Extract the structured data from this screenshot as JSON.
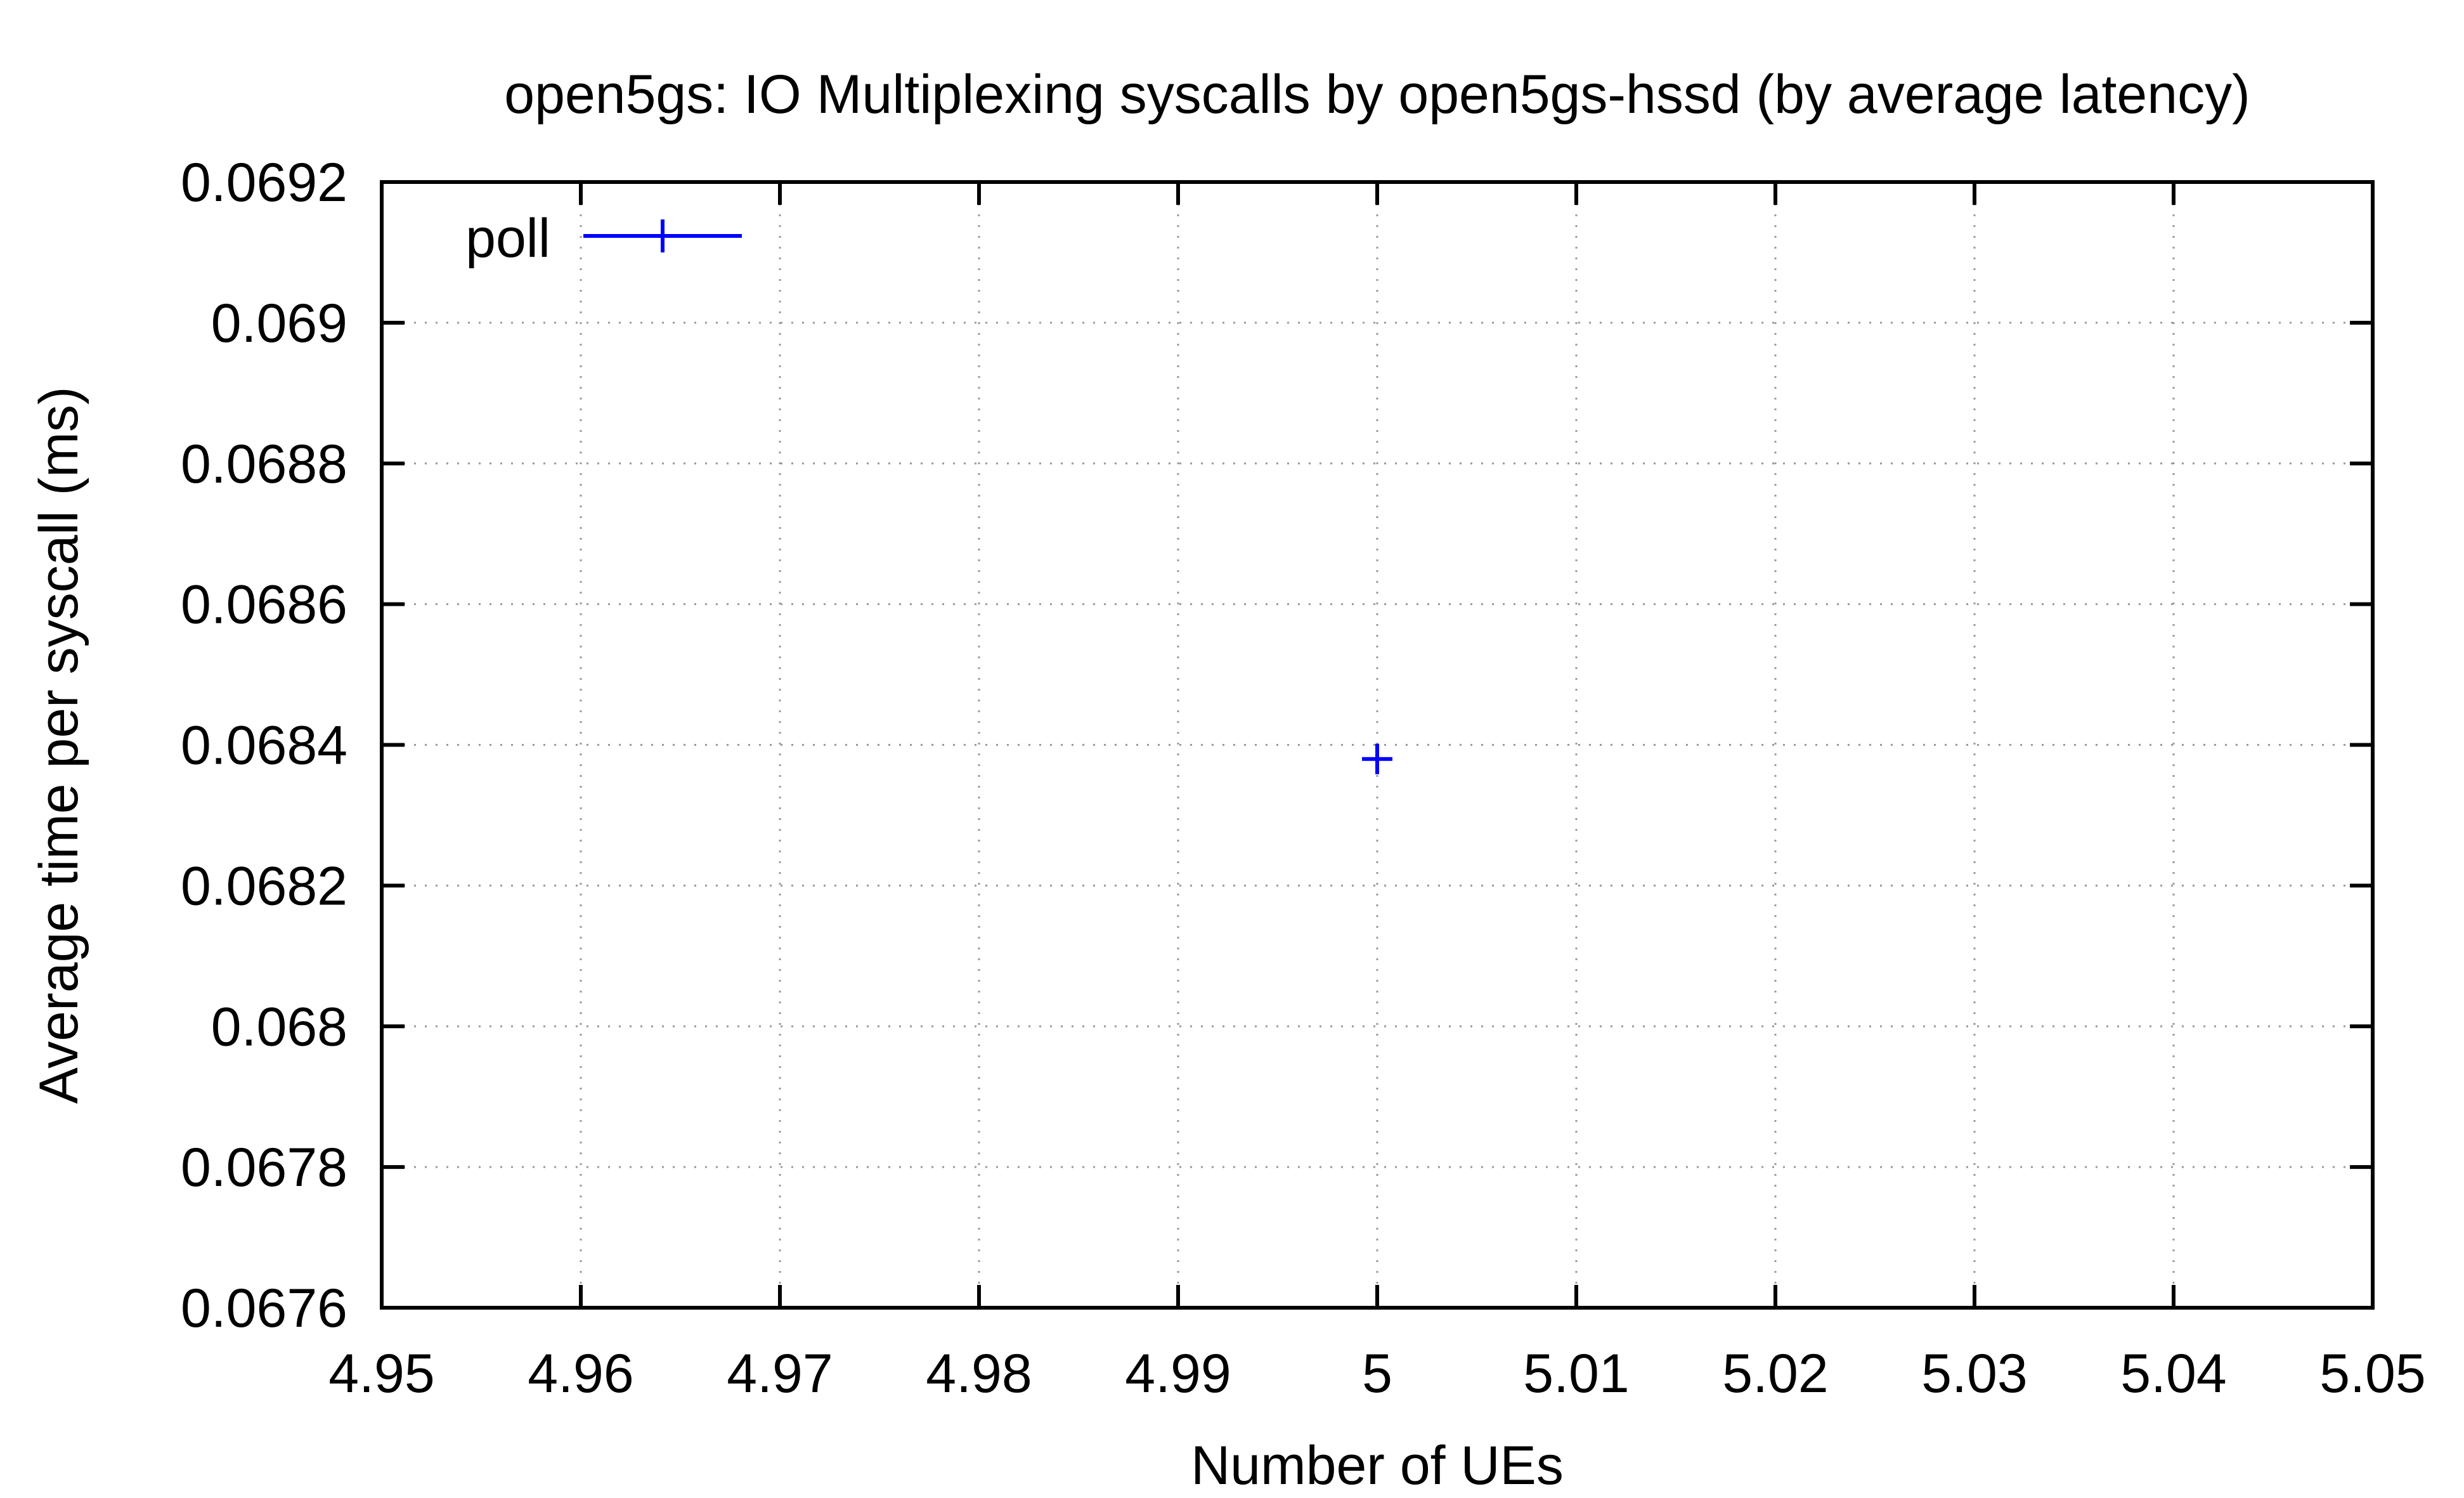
{
  "chart_data": {
    "type": "scatter",
    "title": "open5gs: IO Multiplexing syscalls by open5gs-hssd (by average latency)",
    "xlabel": "Number of UEs",
    "ylabel": "Average time per syscall (ms)",
    "xlim": [
      4.95,
      5.05
    ],
    "ylim": [
      0.0676,
      0.0692
    ],
    "x_ticks": [
      "4.95",
      "4.96",
      "4.97",
      "4.98",
      "4.99",
      "5",
      "5.01",
      "5.02",
      "5.03",
      "5.04",
      "5.05"
    ],
    "y_ticks": [
      "0.0676",
      "0.0678",
      "0.068",
      "0.0682",
      "0.0684",
      "0.0686",
      "0.0688",
      "0.069",
      "0.0692"
    ],
    "grid": true,
    "legend_position": "top-left",
    "series": [
      {
        "name": "poll",
        "color": "#0000ff",
        "marker": "plus",
        "points": [
          {
            "x": 5,
            "y": 0.06838
          }
        ]
      }
    ]
  }
}
